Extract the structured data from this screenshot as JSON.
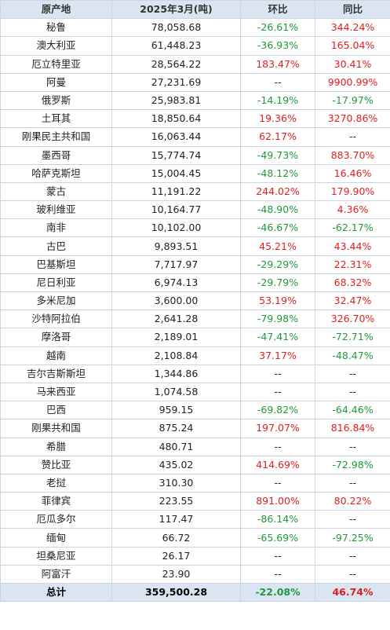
{
  "colors": {
    "header_bg": "#dbe5f1",
    "border": "#c9d4e4",
    "positive": "#e02020",
    "negative": "#1f9a3a"
  },
  "headers": {
    "origin": "原产地",
    "volume": "2025年3月(吨)",
    "mom": "环比",
    "yoy": "同比"
  },
  "rows": [
    {
      "origin": "秘鲁",
      "volume": "78,058.68",
      "mom": "-26.61%",
      "yoy": "344.24%"
    },
    {
      "origin": "澳大利亚",
      "volume": "61,448.23",
      "mom": "-36.93%",
      "yoy": "165.04%"
    },
    {
      "origin": "厄立特里亚",
      "volume": "28,564.22",
      "mom": "183.47%",
      "yoy": "30.41%"
    },
    {
      "origin": "阿曼",
      "volume": "27,231.69",
      "mom": "--",
      "yoy": "9900.99%"
    },
    {
      "origin": "俄罗斯",
      "volume": "25,983.81",
      "mom": "-14.19%",
      "yoy": "-17.97%"
    },
    {
      "origin": "土耳其",
      "volume": "18,850.64",
      "mom": "19.36%",
      "yoy": "3270.86%"
    },
    {
      "origin": "刚果民主共和国",
      "volume": "16,063.44",
      "mom": "62.17%",
      "yoy": "--"
    },
    {
      "origin": "墨西哥",
      "volume": "15,774.74",
      "mom": "-49.73%",
      "yoy": "883.70%"
    },
    {
      "origin": "哈萨克斯坦",
      "volume": "15,004.45",
      "mom": "-48.12%",
      "yoy": "16.46%"
    },
    {
      "origin": "蒙古",
      "volume": "11,191.22",
      "mom": "244.02%",
      "yoy": "179.90%"
    },
    {
      "origin": "玻利维亚",
      "volume": "10,164.77",
      "mom": "-48.90%",
      "yoy": "4.36%"
    },
    {
      "origin": "南非",
      "volume": "10,102.00",
      "mom": "-46.67%",
      "yoy": "-62.17%"
    },
    {
      "origin": "古巴",
      "volume": "9,893.51",
      "mom": "45.21%",
      "yoy": "43.44%"
    },
    {
      "origin": "巴基斯坦",
      "volume": "7,717.97",
      "mom": "-29.29%",
      "yoy": "22.31%"
    },
    {
      "origin": "尼日利亚",
      "volume": "6,974.13",
      "mom": "-29.79%",
      "yoy": "68.32%"
    },
    {
      "origin": "多米尼加",
      "volume": "3,600.00",
      "mom": "53.19%",
      "yoy": "32.47%"
    },
    {
      "origin": "沙特阿拉伯",
      "volume": "2,641.28",
      "mom": "-79.98%",
      "yoy": "326.70%"
    },
    {
      "origin": "摩洛哥",
      "volume": "2,189.01",
      "mom": "-47.41%",
      "yoy": "-72.71%"
    },
    {
      "origin": "越南",
      "volume": "2,108.84",
      "mom": "37.17%",
      "yoy": "-48.47%"
    },
    {
      "origin": "吉尔吉斯斯坦",
      "volume": "1,344.86",
      "mom": "--",
      "yoy": "--"
    },
    {
      "origin": "马来西亚",
      "volume": "1,074.58",
      "mom": "--",
      "yoy": "--"
    },
    {
      "origin": "巴西",
      "volume": "959.15",
      "mom": "-69.82%",
      "yoy": "-64.46%"
    },
    {
      "origin": "刚果共和国",
      "volume": "875.24",
      "mom": "197.07%",
      "yoy": "816.84%"
    },
    {
      "origin": "希腊",
      "volume": "480.71",
      "mom": "--",
      "yoy": "--"
    },
    {
      "origin": "赞比亚",
      "volume": "435.02",
      "mom": "414.69%",
      "yoy": "-72.98%"
    },
    {
      "origin": "老挝",
      "volume": "310.30",
      "mom": "--",
      "yoy": "--"
    },
    {
      "origin": "菲律宾",
      "volume": "223.55",
      "mom": "891.00%",
      "yoy": "80.22%"
    },
    {
      "origin": "厄瓜多尔",
      "volume": "117.47",
      "mom": "-86.14%",
      "yoy": "--"
    },
    {
      "origin": "缅甸",
      "volume": "66.72",
      "mom": "-65.69%",
      "yoy": "-97.25%"
    },
    {
      "origin": "坦桑尼亚",
      "volume": "26.17",
      "mom": "--",
      "yoy": "--"
    },
    {
      "origin": "阿富汗",
      "volume": "23.90",
      "mom": "--",
      "yoy": "--"
    }
  ],
  "total": {
    "origin": "总计",
    "volume": "359,500.28",
    "mom": "-22.08%",
    "yoy": "46.74%"
  }
}
